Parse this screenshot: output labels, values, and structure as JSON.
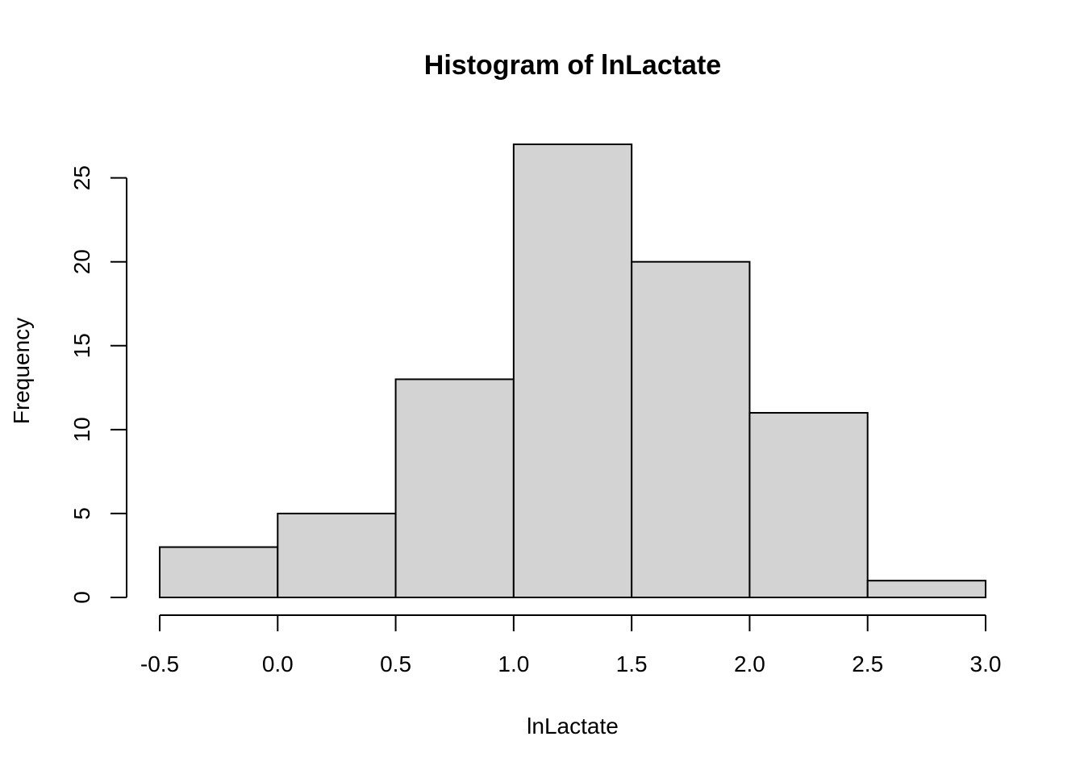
{
  "chart_data": {
    "type": "bar",
    "title": "Histogram of lnLactate",
    "xlabel": "lnLactate",
    "ylabel": "Frequency",
    "bins": [
      {
        "x0": -0.5,
        "x1": 0.0,
        "count": 3
      },
      {
        "x0": 0.0,
        "x1": 0.5,
        "count": 5
      },
      {
        "x0": 0.5,
        "x1": 1.0,
        "count": 13
      },
      {
        "x0": 1.0,
        "x1": 1.5,
        "count": 27
      },
      {
        "x0": 1.5,
        "x1": 2.0,
        "count": 20
      },
      {
        "x0": 2.0,
        "x1": 2.5,
        "count": 11
      },
      {
        "x0": 2.5,
        "x1": 3.0,
        "count": 1
      }
    ],
    "xticks": [
      "-0.5",
      "0.0",
      "0.5",
      "1.0",
      "1.5",
      "2.0",
      "2.5",
      "3.0"
    ],
    "yticks": [
      "0",
      "5",
      "10",
      "15",
      "20",
      "25"
    ],
    "xlim": [
      -0.5,
      3.0
    ],
    "ylim": [
      0,
      27
    ],
    "bar_color": "#d3d3d3",
    "grid": false,
    "legend": "none"
  }
}
